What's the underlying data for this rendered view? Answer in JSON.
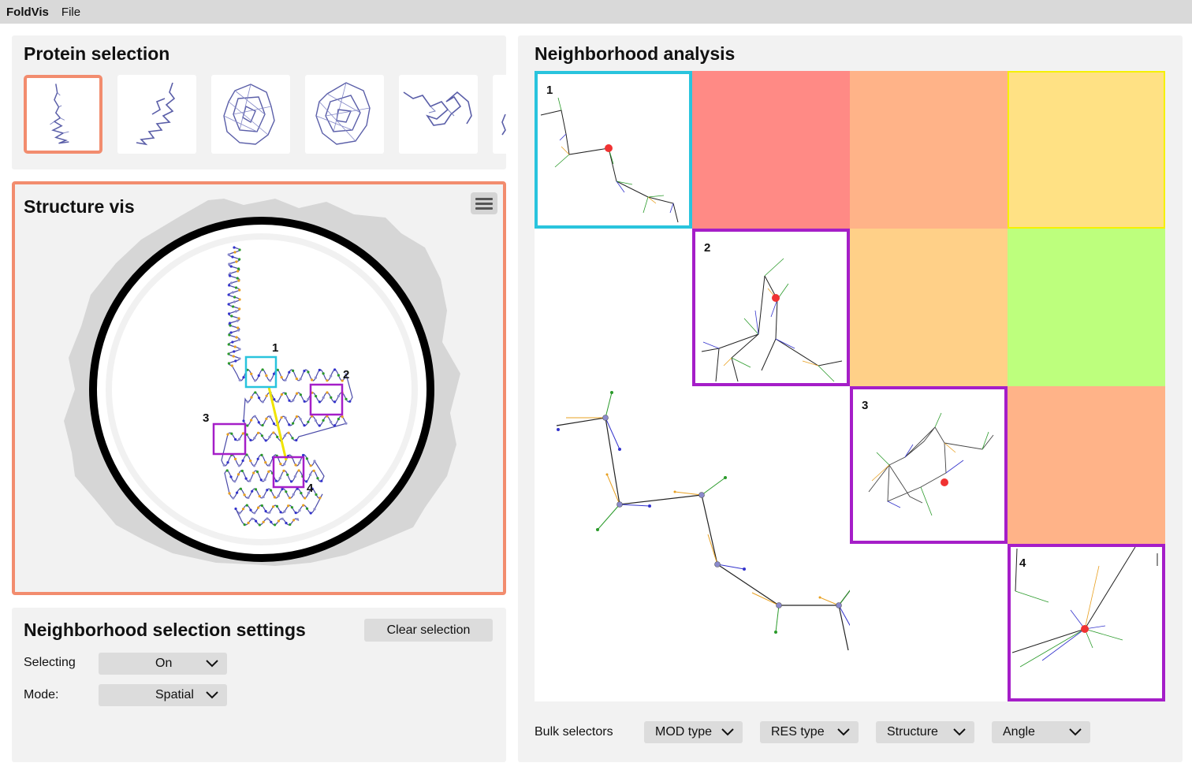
{
  "menubar": {
    "app_name": "FoldVis",
    "file_menu": "File"
  },
  "protein_selection": {
    "title": "Protein selection",
    "selected_index": 0,
    "thumbnail_count": 6
  },
  "structure_vis": {
    "title": "Structure vis",
    "neighborhoods": [
      {
        "label": "1",
        "color": "#29c4dd"
      },
      {
        "label": "2",
        "color": "#a51ec8"
      },
      {
        "label": "3",
        "color": "#a51ec8"
      },
      {
        "label": "4",
        "color": "#a51ec8"
      }
    ],
    "link_color": "#f0e400"
  },
  "settings": {
    "title": "Neighborhood selection settings",
    "clear_button": "Clear selection",
    "selecting_label": "Selecting",
    "selecting_value": "On",
    "mode_label": "Mode:",
    "mode_value": "Spatial"
  },
  "neighborhood_analysis": {
    "title": "Neighborhood analysis",
    "diag_labels": [
      "1",
      "2",
      "3",
      "4"
    ],
    "heatmap_colors": {
      "c12": "#ff8a85",
      "c13": "#ffb388",
      "c14": "#ffe184",
      "c23": "#ffd088",
      "c24": "#bdff7d",
      "c34": "#ffb388"
    },
    "highlight_colors": {
      "c14": "#f5f000"
    },
    "bulk_label": "Bulk selectors",
    "bulk_selectors": [
      "MOD type",
      "RES type",
      "Structure",
      "Angle"
    ]
  },
  "colors": {
    "accent_orange": "#f28c6e",
    "cyan": "#29c4dd",
    "purple": "#a51ec8",
    "center_atom": "#f03232"
  }
}
